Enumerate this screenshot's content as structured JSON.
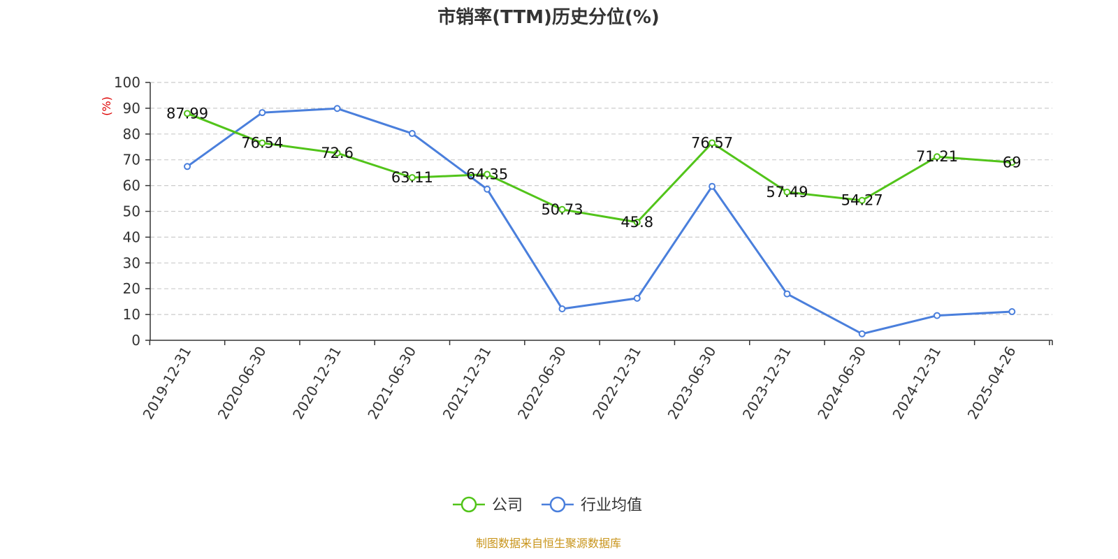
{
  "chart_data": {
    "type": "line",
    "title": "市销率(TTM)历史分位(%)",
    "ylabel": "(%)",
    "ylim": [
      0,
      100
    ],
    "yticks": [
      0,
      10,
      20,
      30,
      40,
      50,
      60,
      70,
      80,
      90,
      100
    ],
    "grid": true,
    "legend_position": "bottom-center",
    "categories": [
      "2019-12-31",
      "2020-06-30",
      "2020-12-31",
      "2021-06-30",
      "2021-12-31",
      "2022-06-30",
      "2022-12-31",
      "2023-06-30",
      "2023-12-31",
      "2024-06-30",
      "2024-12-31",
      "2025-04-26"
    ],
    "series": [
      {
        "name": "公司",
        "color": "#52c41a",
        "values": [
          87.99,
          76.54,
          72.6,
          63.11,
          64.35,
          50.73,
          45.8,
          76.57,
          57.49,
          54.27,
          71.21,
          69
        ],
        "labels": [
          "87.99",
          "76.54",
          "72.6",
          "63.11",
          "64.35",
          "50.73",
          "45.8",
          "76.57",
          "57.49",
          "54.27",
          "71.21",
          "69"
        ]
      },
      {
        "name": "行业均值",
        "color": "#4a7fdc",
        "values": [
          67.4,
          88.3,
          89.9,
          80.2,
          58.6,
          12.2,
          16.3,
          59.7,
          18.0,
          2.5,
          9.6,
          11.1
        ]
      }
    ]
  },
  "source_text": "制图数据来自恒生聚源数据库",
  "source_color": "#c8941a",
  "ylabel_color": "#dd0000"
}
